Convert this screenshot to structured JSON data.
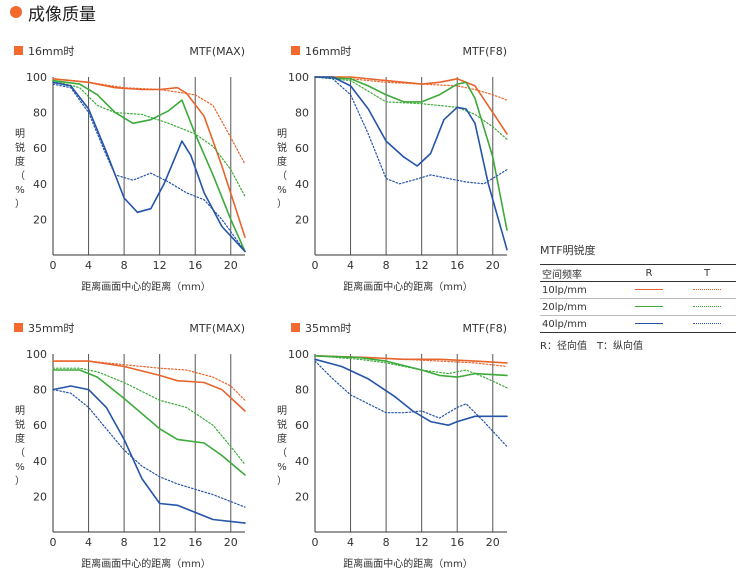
{
  "header": {
    "title": "成像质量",
    "accent": "#f26a2e"
  },
  "colors": {
    "10": "#e8642c",
    "20": "#3daa3a",
    "40": "#2554a8",
    "marker": "#f26a2e",
    "axis": "#333333",
    "grid": "#555555"
  },
  "legend": {
    "title": "MTF明锐度",
    "col_freq": "空间频率",
    "col_r": "R",
    "col_t": "T",
    "rows": [
      "10lp/mm",
      "20lp/mm",
      "40lp/mm"
    ],
    "note": "R：径向值　T：纵向值"
  },
  "chart_data": [
    {
      "type": "line",
      "label": "16mm时",
      "mode": "MTF(MAX)",
      "xlabel": "距离画面中心的距离（mm）",
      "ylabel": "明锐度（%）",
      "xlim": [
        0,
        21.6
      ],
      "ylim": [
        0,
        100
      ],
      "xticks": [
        0,
        4,
        8,
        12,
        16,
        20
      ],
      "yticks": [
        20,
        40,
        60,
        80,
        100
      ],
      "series": [
        {
          "freq": "10",
          "dir": "R",
          "points": [
            [
              0,
              99
            ],
            [
              4,
              97
            ],
            [
              7,
              94
            ],
            [
              10,
              93
            ],
            [
              12,
              93
            ],
            [
              14,
              94
            ],
            [
              15,
              91
            ],
            [
              17,
              78
            ],
            [
              19,
              50
            ],
            [
              21.6,
              10
            ]
          ]
        },
        {
          "freq": "10",
          "dir": "T",
          "points": [
            [
              0,
              99
            ],
            [
              4,
              97
            ],
            [
              8,
              94
            ],
            [
              12,
              93
            ],
            [
              16,
              90
            ],
            [
              18,
              84
            ],
            [
              20,
              66
            ],
            [
              21.6,
              51
            ]
          ]
        },
        {
          "freq": "20",
          "dir": "R",
          "points": [
            [
              0,
              98
            ],
            [
              3,
              96
            ],
            [
              5,
              90
            ],
            [
              7,
              80
            ],
            [
              9,
              74
            ],
            [
              11,
              76
            ],
            [
              13,
              81
            ],
            [
              14.5,
              87
            ],
            [
              16,
              68
            ],
            [
              18,
              45
            ],
            [
              20,
              20
            ],
            [
              21.6,
              2
            ]
          ]
        },
        {
          "freq": "20",
          "dir": "T",
          "points": [
            [
              0,
              98
            ],
            [
              3,
              94
            ],
            [
              5,
              84
            ],
            [
              7,
              80
            ],
            [
              10,
              79
            ],
            [
              13,
              74
            ],
            [
              16,
              68
            ],
            [
              18,
              61
            ],
            [
              20,
              48
            ],
            [
              21.6,
              33
            ]
          ]
        },
        {
          "freq": "40",
          "dir": "R",
          "points": [
            [
              0,
              97
            ],
            [
              2,
              95
            ],
            [
              4,
              82
            ],
            [
              6,
              58
            ],
            [
              8,
              32
            ],
            [
              9.5,
              24
            ],
            [
              11,
              26
            ],
            [
              12.5,
              40
            ],
            [
              14.5,
              64
            ],
            [
              15.5,
              56
            ],
            [
              17,
              35
            ],
            [
              19,
              16
            ],
            [
              21.6,
              2
            ]
          ]
        },
        {
          "freq": "40",
          "dir": "T",
          "points": [
            [
              0,
              96
            ],
            [
              2,
              94
            ],
            [
              4,
              80
            ],
            [
              6,
              56
            ],
            [
              7,
              45
            ],
            [
              9,
              42
            ],
            [
              11,
              46
            ],
            [
              13,
              41
            ],
            [
              15,
              35
            ],
            [
              17,
              31
            ],
            [
              19,
              20
            ],
            [
              21.6,
              2
            ]
          ]
        }
      ]
    },
    {
      "type": "line",
      "label": "16mm时",
      "mode": "MTF(F8)",
      "xlabel": "距离画面中心的距离（mm）",
      "ylabel": "明锐度（%）",
      "xlim": [
        0,
        21.6
      ],
      "ylim": [
        0,
        100
      ],
      "xticks": [
        0,
        4,
        8,
        12,
        16,
        20
      ],
      "yticks": [
        20,
        40,
        60,
        80,
        100
      ],
      "series": [
        {
          "freq": "10",
          "dir": "R",
          "points": [
            [
              0,
              100
            ],
            [
              4,
              100
            ],
            [
              8,
              98
            ],
            [
              12,
              96
            ],
            [
              14,
              97
            ],
            [
              16,
              99
            ],
            [
              18,
              95
            ],
            [
              20,
              80
            ],
            [
              21.6,
              68
            ]
          ]
        },
        {
          "freq": "10",
          "dir": "T",
          "points": [
            [
              0,
              100
            ],
            [
              4,
              99
            ],
            [
              8,
              97
            ],
            [
              12,
              96
            ],
            [
              16,
              95
            ],
            [
              18,
              93
            ],
            [
              20,
              90
            ],
            [
              21.6,
              87
            ]
          ]
        },
        {
          "freq": "20",
          "dir": "R",
          "points": [
            [
              0,
              100
            ],
            [
              4,
              99
            ],
            [
              6,
              95
            ],
            [
              8,
              90
            ],
            [
              10,
              86
            ],
            [
              12,
              86
            ],
            [
              14,
              90
            ],
            [
              16,
              96
            ],
            [
              17,
              97
            ],
            [
              18,
              88
            ],
            [
              20,
              55
            ],
            [
              21.6,
              14
            ]
          ]
        },
        {
          "freq": "20",
          "dir": "T",
          "points": [
            [
              0,
              100
            ],
            [
              4,
              98
            ],
            [
              6,
              92
            ],
            [
              8,
              86
            ],
            [
              12,
              85
            ],
            [
              16,
              83
            ],
            [
              18,
              79
            ],
            [
              20,
              72
            ],
            [
              21.6,
              65
            ]
          ]
        },
        {
          "freq": "40",
          "dir": "R",
          "points": [
            [
              0,
              100
            ],
            [
              2,
              100
            ],
            [
              4,
              95
            ],
            [
              6,
              82
            ],
            [
              8,
              64
            ],
            [
              10,
              55
            ],
            [
              11.5,
              50
            ],
            [
              13,
              57
            ],
            [
              14.5,
              76
            ],
            [
              16,
              83
            ],
            [
              17,
              82
            ],
            [
              18,
              74
            ],
            [
              19.5,
              40
            ],
            [
              21.6,
              3
            ]
          ]
        },
        {
          "freq": "40",
          "dir": "T",
          "points": [
            [
              0,
              100
            ],
            [
              2,
              99
            ],
            [
              4,
              90
            ],
            [
              6,
              68
            ],
            [
              8,
              43
            ],
            [
              9.5,
              40
            ],
            [
              11,
              42
            ],
            [
              13,
              45
            ],
            [
              15,
              43
            ],
            [
              17,
              41
            ],
            [
              19,
              40
            ],
            [
              21.6,
              48
            ]
          ]
        }
      ]
    },
    {
      "type": "line",
      "label": "35mm时",
      "mode": "MTF(MAX)",
      "xlabel": "距离画面中心的距离（mm）",
      "ylabel": "明锐度（%）",
      "xlim": [
        0,
        21.6
      ],
      "ylim": [
        0,
        100
      ],
      "xticks": [
        0,
        4,
        8,
        12,
        16,
        20
      ],
      "yticks": [
        20,
        40,
        60,
        80,
        100
      ],
      "series": [
        {
          "freq": "10",
          "dir": "R",
          "points": [
            [
              0,
              96
            ],
            [
              4,
              96
            ],
            [
              8,
              93
            ],
            [
              12,
              88
            ],
            [
              14,
              85
            ],
            [
              17,
              84
            ],
            [
              19,
              80
            ],
            [
              21.6,
              68
            ]
          ]
        },
        {
          "freq": "10",
          "dir": "T",
          "points": [
            [
              0,
              96
            ],
            [
              4,
              96
            ],
            [
              8,
              94
            ],
            [
              12,
              92
            ],
            [
              15,
              91
            ],
            [
              18,
              87
            ],
            [
              20,
              82
            ],
            [
              21.6,
              74
            ]
          ]
        },
        {
          "freq": "20",
          "dir": "R",
          "points": [
            [
              0,
              91
            ],
            [
              3,
              91
            ],
            [
              5,
              87
            ],
            [
              8,
              75
            ],
            [
              12,
              58
            ],
            [
              14,
              52
            ],
            [
              17,
              50
            ],
            [
              19,
              43
            ],
            [
              21.6,
              32
            ]
          ]
        },
        {
          "freq": "20",
          "dir": "T",
          "points": [
            [
              0,
              92
            ],
            [
              3,
              92
            ],
            [
              5,
              90
            ],
            [
              8,
              84
            ],
            [
              12,
              74
            ],
            [
              15,
              70
            ],
            [
              18,
              60
            ],
            [
              20,
              48
            ],
            [
              21.6,
              38
            ]
          ]
        },
        {
          "freq": "40",
          "dir": "R",
          "points": [
            [
              0,
              80
            ],
            [
              2,
              82
            ],
            [
              4,
              80
            ],
            [
              6,
              70
            ],
            [
              8,
              52
            ],
            [
              10,
              30
            ],
            [
              12,
              16
            ],
            [
              14,
              15
            ],
            [
              16,
              11
            ],
            [
              18,
              7
            ],
            [
              21.6,
              5
            ]
          ]
        },
        {
          "freq": "40",
          "dir": "T",
          "points": [
            [
              0,
              80
            ],
            [
              2,
              78
            ],
            [
              4,
              70
            ],
            [
              6,
              58
            ],
            [
              8,
              46
            ],
            [
              10,
              37
            ],
            [
              12,
              31
            ],
            [
              14,
              27
            ],
            [
              16,
              24
            ],
            [
              18,
              21
            ],
            [
              21.6,
              14
            ]
          ]
        }
      ]
    },
    {
      "type": "line",
      "label": "35mm时",
      "mode": "MTF(F8)",
      "xlabel": "距离画面中心的距离（mm）",
      "ylabel": "明锐度（%）",
      "xlim": [
        0,
        21.6
      ],
      "ylim": [
        0,
        100
      ],
      "xticks": [
        0,
        4,
        8,
        12,
        16,
        20
      ],
      "yticks": [
        20,
        40,
        60,
        80,
        100
      ],
      "series": [
        {
          "freq": "10",
          "dir": "R",
          "points": [
            [
              0,
              99
            ],
            [
              6,
              98
            ],
            [
              10,
              97
            ],
            [
              14,
              97
            ],
            [
              18,
              96
            ],
            [
              21.6,
              95
            ]
          ]
        },
        {
          "freq": "10",
          "dir": "T",
          "points": [
            [
              0,
              99
            ],
            [
              6,
              98
            ],
            [
              10,
              97
            ],
            [
              14,
              96
            ],
            [
              18,
              95
            ],
            [
              21.6,
              93
            ]
          ]
        },
        {
          "freq": "20",
          "dir": "R",
          "points": [
            [
              0,
              99
            ],
            [
              5,
              98
            ],
            [
              8,
              96
            ],
            [
              12,
              91
            ],
            [
              14,
              88
            ],
            [
              16,
              87
            ],
            [
              18,
              89
            ],
            [
              21.6,
              88
            ]
          ]
        },
        {
          "freq": "20",
          "dir": "T",
          "points": [
            [
              0,
              99
            ],
            [
              5,
              97
            ],
            [
              8,
              95
            ],
            [
              12,
              91
            ],
            [
              15,
              89
            ],
            [
              17,
              91
            ],
            [
              19,
              87
            ],
            [
              21.6,
              81
            ]
          ]
        },
        {
          "freq": "40",
          "dir": "R",
          "points": [
            [
              0,
              97
            ],
            [
              3,
              93
            ],
            [
              6,
              86
            ],
            [
              9,
              76
            ],
            [
              11,
              68
            ],
            [
              13,
              62
            ],
            [
              15,
              60
            ],
            [
              16,
              62
            ],
            [
              18,
              65
            ],
            [
              21.6,
              65
            ]
          ]
        },
        {
          "freq": "40",
          "dir": "T",
          "points": [
            [
              0,
              96
            ],
            [
              2,
              86
            ],
            [
              4,
              77
            ],
            [
              6,
              72
            ],
            [
              8,
              67
            ],
            [
              10,
              67
            ],
            [
              12,
              68
            ],
            [
              14,
              64
            ],
            [
              16,
              70
            ],
            [
              17,
              72
            ],
            [
              19,
              62
            ],
            [
              21.6,
              48
            ]
          ]
        }
      ]
    }
  ]
}
